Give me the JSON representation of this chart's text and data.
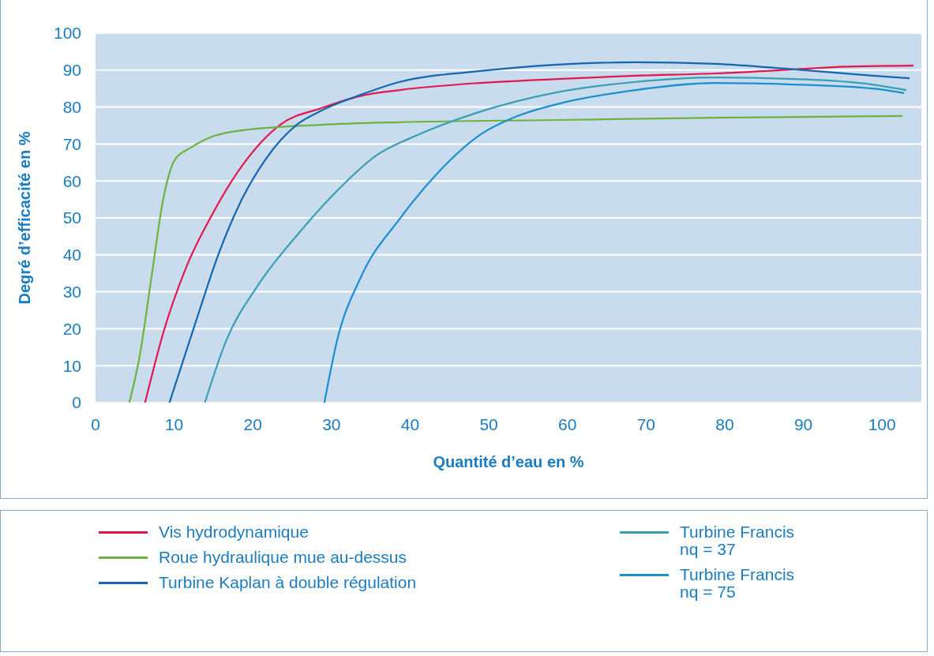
{
  "chart_data": {
    "type": "line",
    "xlabel": "Quantité d’eau en %",
    "ylabel": "Degré d’efficacité en %",
    "xlim": [
      0,
      105
    ],
    "xticks": [
      0,
      10,
      20,
      30,
      40,
      50,
      60,
      70,
      80,
      90,
      100
    ],
    "ylim": [
      0,
      100
    ],
    "yticks": [
      0,
      10,
      20,
      30,
      40,
      50,
      60,
      70,
      80,
      90,
      100
    ],
    "grid": "y",
    "legend": "bottom",
    "marker": "none",
    "line_style": "solid",
    "series": [
      {
        "name": "Vis hydrodynamique",
        "color": "#e3174f",
        "x": [
          6.3,
          8.6,
          11.6,
          14.6,
          18.6,
          23.6,
          28.7,
          33.7,
          38.7,
          48.7,
          58.7,
          68.7,
          78.8,
          88.8,
          93.8,
          104
        ],
        "values": [
          0,
          18.8,
          37,
          50,
          64,
          75.4,
          79.7,
          83,
          84.6,
          86.5,
          87.6,
          88.5,
          89.1,
          90.2,
          90.8,
          91.2
        ]
      },
      {
        "name": "Roue hydraulique mue au-dessus",
        "color": "#6db33f",
        "x": [
          4.3,
          5.6,
          7.1,
          8.6,
          10.1,
          12.1,
          14.6,
          18.6,
          28.7,
          38.7,
          58.7,
          78.8,
          102.6
        ],
        "values": [
          0,
          12.4,
          33.8,
          55,
          65.8,
          69,
          71.8,
          73.7,
          75.2,
          75.9,
          76.5,
          77.1,
          77.6
        ]
      },
      {
        "name": "Turbine Kaplan à double régulation",
        "color": "#1565b0",
        "x": [
          9.4,
          12.6,
          15.6,
          18.6,
          21.6,
          25.7,
          28.7,
          33.7,
          38.7,
          48.7,
          58.7,
          68.7,
          78.8,
          88.8,
          98.8,
          103.5
        ],
        "values": [
          0,
          20.9,
          40,
          55,
          65.8,
          75.4,
          79,
          83.3,
          86.8,
          89.7,
          91.5,
          92.1,
          91.7,
          90.2,
          88.5,
          87.8
        ]
      },
      {
        "name": "Turbine Francis nq = 37",
        "color": "#3a9fb5",
        "x": [
          13.9,
          16.6,
          20.6,
          25.7,
          30.7,
          35.7,
          40.7,
          48.7,
          58.7,
          68.7,
          78.8,
          88.8,
          98.8,
          103.1
        ],
        "values": [
          0,
          16.7,
          31.6,
          45.5,
          57.3,
          66.9,
          72.2,
          78.6,
          84,
          86.8,
          88,
          87.6,
          86.1,
          84.6
        ]
      },
      {
        "name": "Turbine Francis nq = 75",
        "color": "#1a8fd0",
        "x": [
          29.1,
          30.7,
          33.7,
          38.7,
          43.7,
          48.7,
          53.7,
          58.7,
          68.7,
          78.8,
          88.8,
          98.8,
          102.8
        ],
        "values": [
          0,
          16.7,
          33.8,
          49.8,
          62.6,
          72.2,
          77.6,
          80.8,
          84.6,
          86.5,
          86.1,
          85,
          83.8
        ]
      }
    ]
  }
}
